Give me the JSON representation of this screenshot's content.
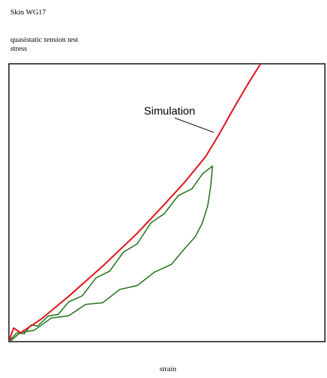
{
  "chart_data": {
    "type": "line",
    "title": "Skin WG17",
    "subtitle": "quasistatic tension test",
    "y_label": "stress",
    "x_label": "strain",
    "annotation": "Simulation",
    "xlim": [
      0,
      100
    ],
    "ylim": [
      0,
      100
    ],
    "series": [
      {
        "color": "#e0161e",
        "x": [
          0,
          1.5,
          3.7,
          10.2,
          18.9,
          29.7,
          40.6,
          49.2,
          55.7,
          62.3,
          66.6,
          70.9,
          75.3,
          79.6
        ],
        "values": [
          0.2,
          4.9,
          3.2,
          8.1,
          16.3,
          27.2,
          39.0,
          49.4,
          57.5,
          66.7,
          74.8,
          83.5,
          92.1,
          100
        ]
      },
      {
        "color": "#1e6e14",
        "x": [
          0.4,
          2.6,
          4.8,
          7.0,
          9.1,
          12.4,
          15.6,
          18.9,
          23.2,
          27.5,
          31.9,
          36.2,
          40.6,
          44.9,
          49.2,
          53.6,
          57.9,
          61.2,
          64.4,
          63.9,
          62.9,
          61.2,
          59.0,
          55.7,
          51.4,
          46.0,
          40.6,
          35.1,
          29.7,
          24.3,
          18.9,
          13.4,
          8.0,
          3.7,
          0.4
        ],
        "values": [
          0.7,
          3.2,
          2.8,
          6.0,
          5.6,
          9.2,
          9.8,
          14.3,
          16.5,
          22.9,
          25.4,
          32.2,
          35.2,
          42.7,
          46.1,
          52.6,
          55.0,
          60.3,
          63.2,
          56.3,
          48.9,
          42.7,
          37.8,
          33.6,
          27.8,
          25.0,
          20.2,
          18.8,
          14.0,
          13.4,
          9.3,
          8.5,
          4.1,
          3.3,
          0.2
        ]
      }
    ]
  }
}
